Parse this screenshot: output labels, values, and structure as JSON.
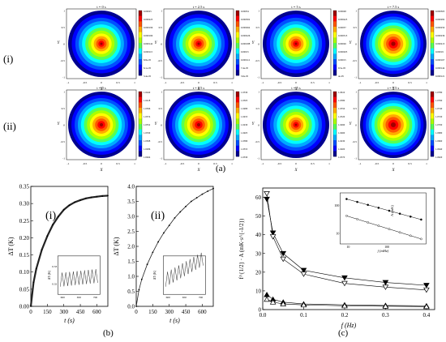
{
  "colors": {
    "jet": [
      "#00008f",
      "#0000ff",
      "#0050ff",
      "#00aaff",
      "#00ffff",
      "#55ff55",
      "#aaff00",
      "#ffff00",
      "#ffaa00",
      "#ff5500",
      "#ff0000",
      "#a00000"
    ],
    "gridgray": "#7f7f7f"
  },
  "rows": [
    {
      "label": "(i)"
    },
    {
      "label": "(ii)"
    }
  ],
  "panel_a": {
    "label": "(a)",
    "row_i": [
      {
        "title": "t = 0 s",
        "spot": 0.16,
        "colorbar": [
          "0.00025",
          "0.000223",
          "0.000196",
          "0.000169",
          "0.000142",
          "0.000115",
          "8.8e-05",
          "6.1e-05",
          "3.4e-05"
        ]
      },
      {
        "title": "t = 2.5 s",
        "spot": 0.17,
        "colorbar": [
          "0.00034",
          "0.000302",
          "0.000264",
          "0.000226",
          "0.000188",
          "0.00015",
          "0.000112",
          "7.4e-05",
          "3.6e-05"
        ]
      },
      {
        "title": "t = 5 s",
        "spot": 0.16,
        "colorbar": [
          "0.00048",
          "0.000425",
          "0.00037",
          "0.000315",
          "0.00026",
          "0.000205",
          "0.00015",
          "9.5e-05",
          "4e-05"
        ]
      },
      {
        "title": "t = 7.5 s",
        "spot": 0.4,
        "colorbar": [
          "0.000305",
          "0.000282",
          "0.000259",
          "0.000236",
          "0.000213",
          "0.00019",
          "0.000167",
          "0.000144",
          "0.000121"
        ]
      }
    ],
    "row_ii": [
      {
        "title": "t = 0 s",
        "spot": 0.3,
        "colorbar": [
          "1.0440",
          "1.0418",
          "1.0396",
          "1.0374",
          "1.0352",
          "1.0330",
          "1.0308",
          "1.0286",
          "1.0264"
        ]
      },
      {
        "title": "t = 2.5 s",
        "spot": 0.3,
        "colorbar": [
          "1.0530",
          "1.0505",
          "1.0480",
          "1.0455",
          "1.0430",
          "1.0405",
          "1.0380",
          "1.0355",
          "1.0330"
        ]
      },
      {
        "title": "t = 5 s",
        "spot": 0.14,
        "colorbar": [
          "1.0610",
          "1.0580",
          "1.0550",
          "1.0520",
          "1.0490",
          "1.0460",
          "1.0430",
          "1.0400",
          "1.0370"
        ]
      },
      {
        "title": "t = 7.5 s",
        "spot": 0.45,
        "colorbar": [
          "1.0780",
          "1.0760",
          "1.0740",
          "1.0720",
          "1.0700",
          "1.0680",
          "1.0660",
          "1.0640",
          "1.0620"
        ]
      }
    ],
    "axis": {
      "xlabel": "X",
      "ylabel": "Y",
      "ticks": [
        "-1",
        "-0.5",
        "0",
        "0.5",
        "1"
      ]
    }
  },
  "panel_b": {
    "label": "(b)",
    "i": {
      "tag": "(i)",
      "ylabel": "ΔT (K)",
      "xlabel": "t (s)",
      "yticks": [
        "0.00",
        "0.05",
        "0.10",
        "0.15",
        "0.20",
        "0.25",
        "0.30",
        "0.35"
      ],
      "xticks": [
        "0",
        "150",
        "300",
        "450",
        "600"
      ],
      "inset": {
        "ylabel": "ΔT (K)",
        "xticks": [
          "600",
          "650",
          "700"
        ],
        "yticks": [
          "0.32",
          "0.33"
        ]
      }
    },
    "ii": {
      "tag": "(ii)",
      "ylabel": "ΔT (K)",
      "xlabel": "t (s)",
      "yticks": [
        "0.0",
        "0.5",
        "1.0",
        "1.5",
        "2.0",
        "2.5",
        "3.0",
        "3.5",
        "4.0"
      ],
      "xticks": [
        "0",
        "150",
        "300",
        "450",
        "600"
      ],
      "inset": {
        "ylabel": "ΔT (K)",
        "xticks": [
          "600",
          "650",
          "700"
        ]
      }
    }
  },
  "panel_c": {
    "label": "(c)",
    "ylabel": "f^{1/2} · A (mK·s^{-1/2})",
    "xlabel": "f (Hz)",
    "yticks": [
      "0",
      "10",
      "20",
      "30",
      "40",
      "50",
      "60"
    ],
    "xticks": [
      "0.0",
      "0.1",
      "0.2",
      "0.3",
      "0.4"
    ],
    "inset": {
      "ylabel": "A (mK)",
      "xlabel": "f (mHz)",
      "yticks": [
        "10",
        "100"
      ],
      "xticks": [
        "10",
        "100"
      ]
    }
  },
  "chart_data": [
    {
      "type": "line",
      "title": "(b)(i)",
      "xlabel": "t (s)",
      "ylabel": "ΔT (K)",
      "xlim": [
        0,
        700
      ],
      "ylim": [
        0,
        0.35
      ],
      "series": [
        {
          "x": [
            0,
            25,
            50,
            100,
            150,
            200,
            250,
            300,
            350,
            400,
            450,
            500,
            550,
            600,
            650,
            700
          ],
          "y": [
            0,
            0.07,
            0.11,
            0.165,
            0.205,
            0.238,
            0.262,
            0.282,
            0.295,
            0.304,
            0.31,
            0.315,
            0.318,
            0.32,
            0.322,
            0.323
          ]
        }
      ]
    },
    {
      "type": "line",
      "title": "(b)(ii)",
      "xlabel": "t (s)",
      "ylabel": "ΔT (K)",
      "xlim": [
        0,
        700
      ],
      "ylim": [
        0,
        4.0
      ],
      "series": [
        {
          "x": [
            0,
            25,
            50,
            100,
            150,
            200,
            250,
            300,
            350,
            400,
            450,
            500,
            550,
            600,
            650,
            700
          ],
          "y": [
            0,
            0.55,
            0.9,
            1.4,
            1.8,
            2.15,
            2.45,
            2.7,
            2.95,
            3.15,
            3.33,
            3.5,
            3.62,
            3.74,
            3.84,
            3.93
          ]
        }
      ]
    },
    {
      "type": "line",
      "title": "(c)",
      "xlabel": "f (Hz)",
      "ylabel": "f^{1/2} · A (mK·s^{-1/2})",
      "xlim": [
        0,
        0.42
      ],
      "ylim": [
        0,
        65
      ],
      "x": [
        0.01,
        0.025,
        0.05,
        0.1,
        0.2,
        0.3,
        0.4
      ],
      "series": [
        {
          "marker": "filled-down-triangle",
          "values": [
            59,
            41,
            30,
            21,
            17,
            14.5,
            13
          ]
        },
        {
          "marker": "open-down-triangle",
          "values": [
            62,
            39,
            27,
            19,
            14,
            12,
            10.5
          ]
        },
        {
          "marker": "filled-up-triangle",
          "values": [
            8,
            5.5,
            4,
            3,
            2.5,
            2.2,
            2
          ]
        },
        {
          "marker": "open-up-triangle",
          "values": [
            5.5,
            4,
            3,
            2.5,
            2,
            1.8,
            1.6
          ]
        }
      ]
    }
  ]
}
